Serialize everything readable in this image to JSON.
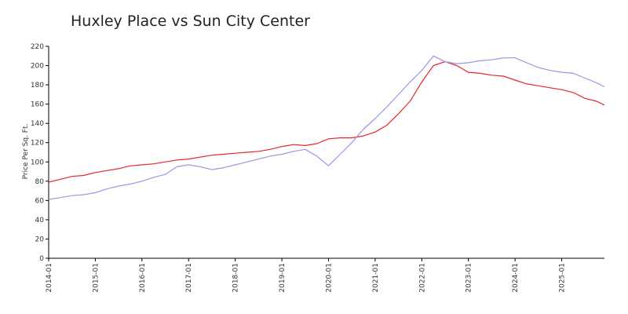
{
  "chart_data": {
    "type": "line",
    "title": "Huxley Place vs Sun City Center",
    "ylabel": "Price Per Sq. Ft.",
    "xlabel": "",
    "ylim": [
      0,
      220
    ],
    "yticks": [
      0,
      20,
      40,
      60,
      80,
      100,
      120,
      140,
      160,
      180,
      200,
      220
    ],
    "xlim": [
      "2014-01",
      "2025-12"
    ],
    "xticks": [
      "2014-01",
      "2015-01",
      "2016-01",
      "2017-01",
      "2018-01",
      "2019-01",
      "2020-01",
      "2021-01",
      "2022-01",
      "2023-01",
      "2024-01",
      "2025-01"
    ],
    "grid": false,
    "legend": "none",
    "series": [
      {
        "color": "#e8262a",
        "points": [
          [
            "2014-01",
            79
          ],
          [
            "2014-04",
            82
          ],
          [
            "2014-07",
            85
          ],
          [
            "2014-10",
            86
          ],
          [
            "2015-01",
            89
          ],
          [
            "2015-04",
            91
          ],
          [
            "2015-07",
            93
          ],
          [
            "2015-10",
            96
          ],
          [
            "2016-01",
            97
          ],
          [
            "2016-04",
            98
          ],
          [
            "2016-07",
            100
          ],
          [
            "2016-10",
            102
          ],
          [
            "2017-01",
            103
          ],
          [
            "2017-04",
            105
          ],
          [
            "2017-07",
            107
          ],
          [
            "2017-10",
            108
          ],
          [
            "2018-01",
            109
          ],
          [
            "2018-04",
            110
          ],
          [
            "2018-07",
            111
          ],
          [
            "2018-10",
            113
          ],
          [
            "2019-01",
            116
          ],
          [
            "2019-04",
            118
          ],
          [
            "2019-07",
            117
          ],
          [
            "2019-10",
            119
          ],
          [
            "2020-01",
            124
          ],
          [
            "2020-04",
            125
          ],
          [
            "2020-07",
            125
          ],
          [
            "2020-10",
            127
          ],
          [
            "2021-01",
            131
          ],
          [
            "2021-04",
            138
          ],
          [
            "2021-07",
            150
          ],
          [
            "2021-10",
            163
          ],
          [
            "2022-01",
            183
          ],
          [
            "2022-04",
            200
          ],
          [
            "2022-07",
            204
          ],
          [
            "2022-10",
            200
          ],
          [
            "2023-01",
            193
          ],
          [
            "2023-04",
            192
          ],
          [
            "2023-07",
            190
          ],
          [
            "2023-10",
            189
          ],
          [
            "2024-01",
            185
          ],
          [
            "2024-04",
            181
          ],
          [
            "2024-07",
            179
          ],
          [
            "2024-10",
            177
          ],
          [
            "2025-01",
            175
          ],
          [
            "2025-04",
            172
          ],
          [
            "2025-07",
            166
          ],
          [
            "2025-10",
            163
          ],
          [
            "2025-12",
            159
          ]
        ]
      },
      {
        "color": "#9898e6",
        "points": [
          [
            "2014-01",
            61
          ],
          [
            "2014-04",
            63
          ],
          [
            "2014-07",
            65
          ],
          [
            "2014-10",
            66
          ],
          [
            "2015-01",
            68
          ],
          [
            "2015-04",
            72
          ],
          [
            "2015-07",
            75
          ],
          [
            "2015-10",
            77
          ],
          [
            "2016-01",
            80
          ],
          [
            "2016-04",
            84
          ],
          [
            "2016-07",
            87
          ],
          [
            "2016-10",
            95
          ],
          [
            "2017-01",
            97
          ],
          [
            "2017-04",
            95
          ],
          [
            "2017-07",
            92
          ],
          [
            "2017-10",
            94
          ],
          [
            "2018-01",
            97
          ],
          [
            "2018-04",
            100
          ],
          [
            "2018-07",
            103
          ],
          [
            "2018-10",
            106
          ],
          [
            "2019-01",
            108
          ],
          [
            "2019-04",
            111
          ],
          [
            "2019-07",
            113
          ],
          [
            "2019-10",
            106
          ],
          [
            "2020-01",
            96
          ],
          [
            "2020-04",
            108
          ],
          [
            "2020-07",
            120
          ],
          [
            "2020-10",
            134
          ],
          [
            "2021-01",
            145
          ],
          [
            "2021-04",
            157
          ],
          [
            "2021-07",
            170
          ],
          [
            "2021-10",
            183
          ],
          [
            "2022-01",
            195
          ],
          [
            "2022-04",
            210
          ],
          [
            "2022-07",
            204
          ],
          [
            "2022-10",
            202
          ],
          [
            "2023-01",
            203
          ],
          [
            "2023-04",
            205
          ],
          [
            "2023-07",
            206
          ],
          [
            "2023-10",
            208
          ],
          [
            "2024-01",
            208
          ],
          [
            "2024-04",
            203
          ],
          [
            "2024-07",
            198
          ],
          [
            "2024-10",
            195
          ],
          [
            "2025-01",
            193
          ],
          [
            "2025-04",
            192
          ],
          [
            "2025-07",
            187
          ],
          [
            "2025-10",
            182
          ],
          [
            "2025-12",
            178
          ]
        ]
      }
    ]
  }
}
